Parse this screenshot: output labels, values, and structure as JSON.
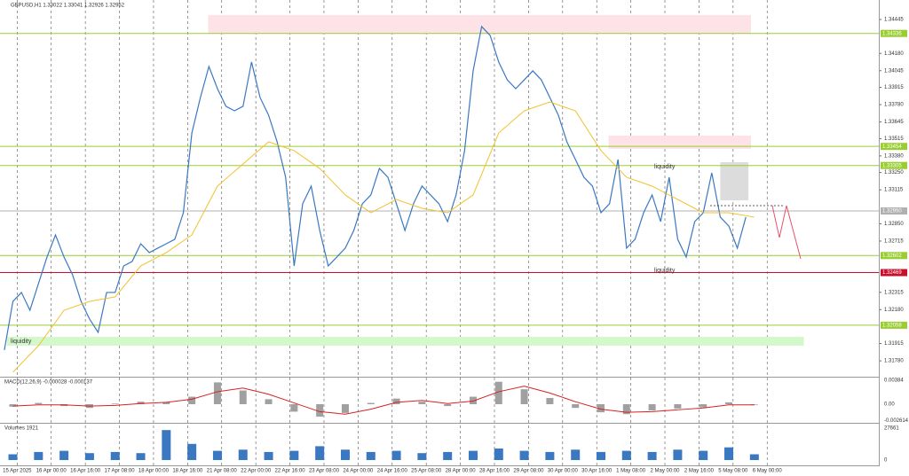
{
  "chart_data": [
    {
      "type": "line",
      "title": "GBPUSD,H1  1.33022 1.33041 1.32926 1.32952",
      "xlim": [
        -0.2,
        102.6
      ],
      "ylim": [
        1.31656,
        1.34597
      ],
      "yticks": [
        1.34445,
        {
          "value": 1.3418,
          "label": "1.34180"
        },
        1.34045,
        1.33915,
        {
          "value": 1.3378,
          "label": "1.33780"
        },
        1.33645,
        1.33515,
        {
          "value": 1.3338,
          "label": "1.33380"
        },
        {
          "value": 1.3325,
          "label": "1.33250"
        },
        1.33115,
        {
          "value": 1.3285,
          "label": "1.32850"
        },
        1.32715,
        1.32315,
        {
          "value": 1.3218,
          "label": "1.32180"
        },
        1.31915,
        {
          "value": 1.3178,
          "label": "1.31780"
        }
      ],
      "xticks": [
        {
          "value": 1.5,
          "label": "15 Apr 2025"
        },
        {
          "value": 5.5,
          "label": "16 Apr 00:00"
        },
        {
          "value": 9.5,
          "label": "16 Apr 16:00"
        },
        {
          "value": 13.5,
          "label": "17 Apr 08:00"
        },
        {
          "value": 17.5,
          "label": "18 Apr 00:00"
        },
        {
          "value": 21.5,
          "label": "18 Apr 16:00"
        },
        {
          "value": 25.5,
          "label": "21 Apr 08:00"
        },
        {
          "value": 29.5,
          "label": "22 Apr 00:00"
        },
        {
          "value": 33.5,
          "label": "22 Apr 16:00"
        },
        {
          "value": 37.5,
          "label": "23 Apr 08:00"
        },
        {
          "value": 41.5,
          "label": "24 Apr 00:00"
        },
        {
          "value": 45.5,
          "label": "24 Apr 16:00"
        },
        {
          "value": 49.5,
          "label": "25 Apr 08:00"
        },
        {
          "value": 53.5,
          "label": "28 Apr 00:00"
        },
        {
          "value": 57.5,
          "label": "28 Apr 16:00"
        },
        {
          "value": 61.5,
          "label": "29 Apr 08:00"
        },
        {
          "value": 65.5,
          "label": "30 Apr 00:00"
        },
        {
          "value": 69.5,
          "label": "30 Apr 16:00"
        },
        {
          "value": 73.5,
          "label": "1 May 08:00"
        },
        {
          "value": 77.5,
          "label": "2 May 00:00"
        },
        {
          "value": 81.5,
          "label": "2 May 16:00"
        },
        {
          "value": 85.5,
          "label": "5 May 08:00"
        },
        {
          "value": 89.5,
          "label": "6 May 00:00"
        }
      ],
      "series": [
        {
          "name": "GBPUSD",
          "color": "#3a78c2",
          "step": 1,
          "values": [
            1.31864,
            1.32244,
            1.32314,
            1.32175,
            1.32383,
            1.3259,
            1.32763,
            1.3259,
            1.32452,
            1.32244,
            1.32106,
            1.32002,
            1.32314,
            1.32314,
            1.32521,
            1.32556,
            1.32694,
            1.32625,
            1.3266,
            1.32694,
            1.32729,
            1.32936,
            1.33559,
            1.33836,
            1.34078,
            1.33905,
            1.33767,
            1.33732,
            1.33767,
            1.34113,
            1.33836,
            1.33698,
            1.3349,
            1.33213,
            1.32521,
            1.33006,
            1.33144,
            1.32798,
            1.32521,
            1.3259,
            1.3266,
            1.32798,
            1.33006,
            1.33075,
            1.33282,
            1.33213,
            1.33006,
            1.32798,
            1.33006,
            1.33144,
            1.33075,
            1.33006,
            1.32867,
            1.33075,
            1.33421,
            1.34044,
            1.3439,
            1.3432,
            1.34113,
            1.33974,
            1.33905,
            1.33974,
            1.34044,
            1.33974,
            1.33836,
            1.33698,
            1.3349,
            1.33352,
            1.33213,
            1.33144,
            1.32936,
            1.33006,
            1.33352,
            1.3266,
            1.32729,
            1.32936,
            1.33075,
            1.32867,
            1.33213,
            1.32729,
            1.3259,
            1.32867,
            1.32936,
            1.33248,
            1.32902,
            1.32833,
            1.3266,
            1.32902
          ]
        },
        {
          "name": "MA",
          "color": "#f2c12e",
          "step": 3,
          "values": [
            1.31691,
            1.31898,
            1.32175,
            1.32244,
            1.32279,
            1.32521,
            1.32625,
            1.32763,
            1.33144,
            1.33317,
            1.3349,
            1.33421,
            1.33282,
            1.33075,
            1.32936,
            1.3304,
            1.32971,
            1.32936,
            1.33075,
            1.33559,
            1.33732,
            1.33801,
            1.33732,
            1.33421,
            1.33213,
            1.33144,
            1.3304,
            1.32936,
            1.32936,
            1.32902
          ]
        }
      ],
      "levels": [
        {
          "value": 1.34336,
          "color": "#9acd32"
        },
        {
          "value": 1.33454,
          "color": "#9acd32"
        },
        {
          "value": 1.33305,
          "color": "#9acd32"
        },
        {
          "value": 1.3295,
          "label": "1.32950",
          "color": "#b0b0b0"
        },
        {
          "value": 1.32602,
          "color": "#9acd32"
        },
        {
          "value": 1.32469,
          "color": "#c8102e"
        },
        {
          "value": 1.32058,
          "color": "#9acd32"
        }
      ],
      "zones": [
        {
          "x": [
            23.9,
            87.6
          ],
          "y": [
            1.34334,
            1.3448
          ],
          "color": "#fde3e8"
        },
        {
          "x": [
            70.9,
            87.6
          ],
          "y": [
            1.33435,
            1.33539
          ],
          "color": "#fde3e8"
        },
        {
          "x": [
            0.3,
            93.8
          ],
          "y": [
            1.31898,
            1.31968
          ],
          "color": "#d4f7cc"
        },
        {
          "x": [
            84,
            87.3
          ],
          "y": [
            1.33033,
            1.33331
          ],
          "color": "#dcdcdc"
        }
      ],
      "annotations": [
        "liquidity",
        "liquidity",
        "liquidity"
      ]
    },
    {
      "type": "histogram-line",
      "title": "MACD(12,26,9) -0.000028 -0.000137",
      "ylim": [
        -0.00299,
        0.00441
      ],
      "yticks": [
        0.00384,
        {
          "value": 0,
          "label": "0.00"
        },
        -0.002614
      ],
      "series": [
        {
          "name": "MACD",
          "color": "#a0a0a0",
          "step": 3,
          "values": [
            -0.0004,
            0.0002,
            -0.0003,
            -0.0006,
            0.0001,
            0.0004,
            0.0003,
            0.0012,
            0.0035,
            0.0022,
            0.0008,
            -0.0012,
            -0.002,
            -0.0014,
            0.0002,
            0.0009,
            0.0004,
            -0.0003,
            0.0012,
            0.0036,
            0.0024,
            0.001,
            -0.0006,
            -0.0013,
            -0.0016,
            -0.001,
            -0.0007,
            -0.0005,
            0.0003,
            -0.0001
          ]
        },
        {
          "name": "Signal",
          "color": "#d62020",
          "step": 3,
          "values": [
            -0.0003,
            -0.0001,
            -0.0001,
            -0.0003,
            -0.0002,
            0.0001,
            0.0003,
            0.0008,
            0.002,
            0.0026,
            0.0016,
            0.0002,
            -0.0012,
            -0.0016,
            -0.0008,
            0.0003,
            0.0006,
            0.0001,
            0.0005,
            0.002,
            0.0029,
            0.0018,
            0.0004,
            -0.0008,
            -0.0013,
            -0.0012,
            -0.0009,
            -0.0006,
            -0.0001,
            -0.0001
          ]
        }
      ]
    },
    {
      "type": "bar",
      "title": "Volumes 1921",
      "ylim": [
        -4600,
        31500
      ],
      "yticks": [
        27661,
        0
      ],
      "series": [
        {
          "name": "Volumes",
          "color": "#3a78c2",
          "step": 3,
          "values": [
            5000,
            7000,
            8000,
            6000,
            7000,
            6000,
            26000,
            14000,
            8000,
            9000,
            7000,
            8000,
            12000,
            9000,
            7000,
            8000,
            6000,
            7000,
            8000,
            10000,
            8000,
            7000,
            9000,
            7000,
            8000,
            7000,
            9000,
            8000,
            11000,
            5000
          ]
        }
      ]
    }
  ]
}
